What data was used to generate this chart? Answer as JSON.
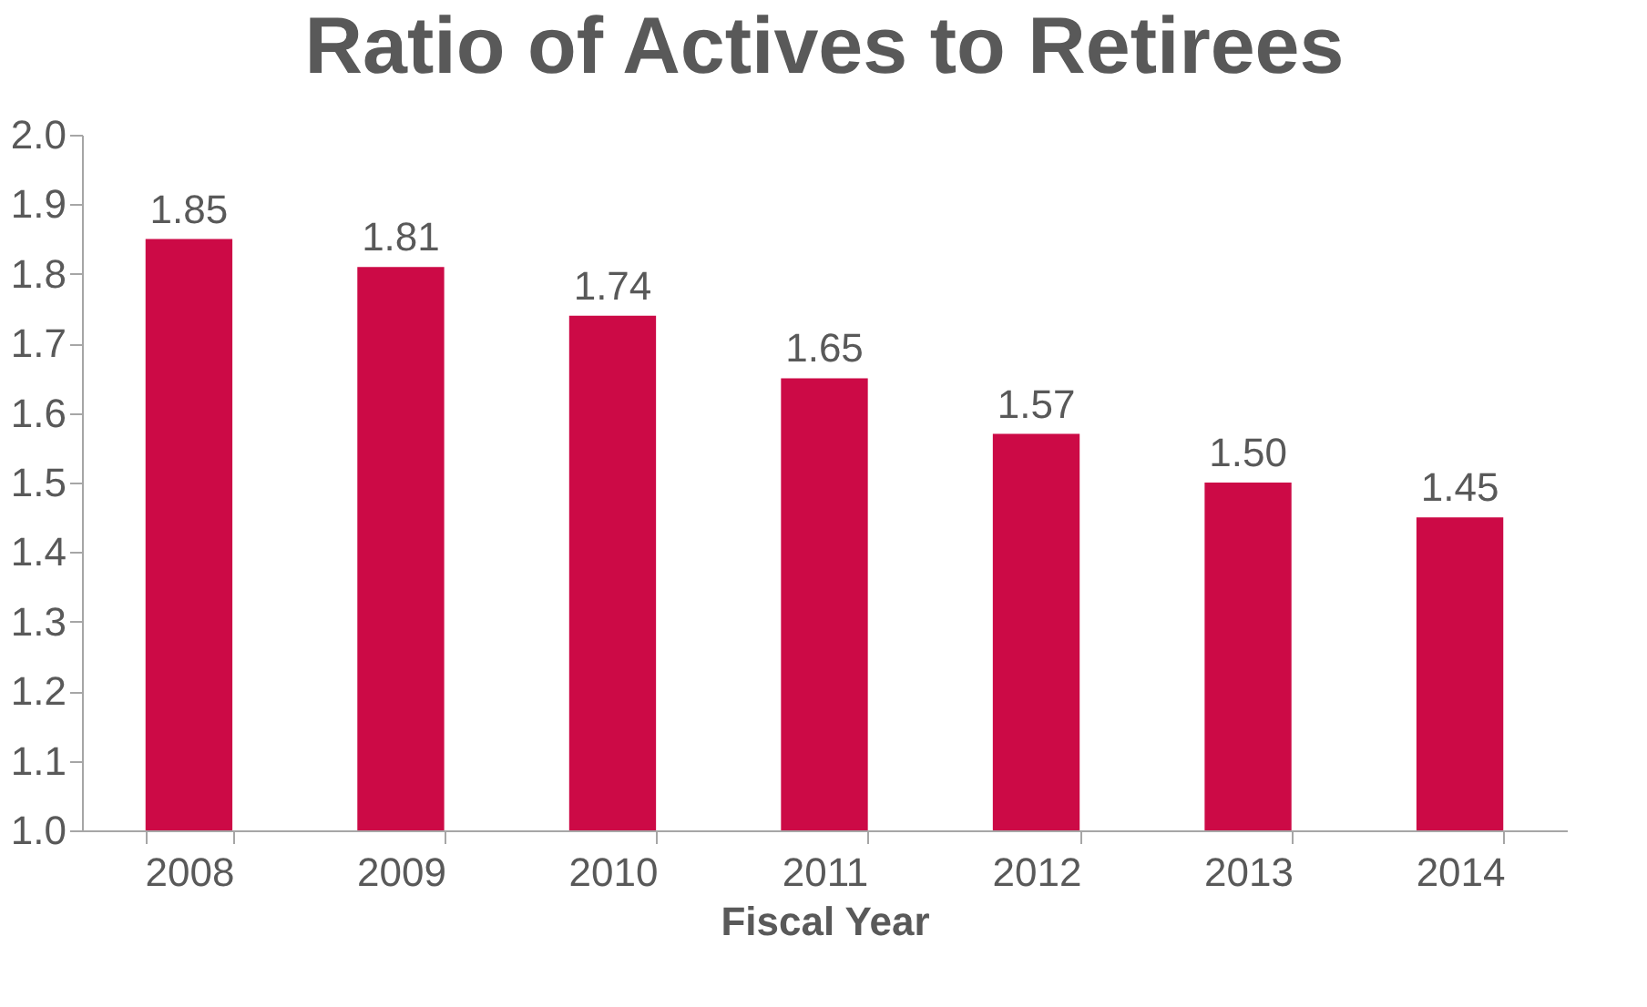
{
  "chart_data": {
    "type": "bar",
    "title": "Ratio of Actives to Retirees",
    "xlabel": "Fiscal Year",
    "categories": [
      "2008",
      "2009",
      "2010",
      "2011",
      "2012",
      "2013",
      "2014"
    ],
    "values": [
      1.85,
      1.81,
      1.74,
      1.65,
      1.57,
      1.5,
      1.45
    ],
    "value_labels": [
      "1.85",
      "1.81",
      "1.74",
      "1.65",
      "1.57",
      "1.50",
      "1.45"
    ],
    "color": "#cc0a46",
    "ylim": [
      1.0,
      2.0
    ],
    "yticks": [
      {
        "value": 1.0,
        "label": "1.0"
      },
      1.1,
      1.2,
      1.3,
      1.4,
      1.5,
      1.6,
      1.7,
      1.8,
      1.9,
      {
        "value": 2.0,
        "label": "2.0"
      }
    ],
    "grid": false,
    "legend": false
  }
}
